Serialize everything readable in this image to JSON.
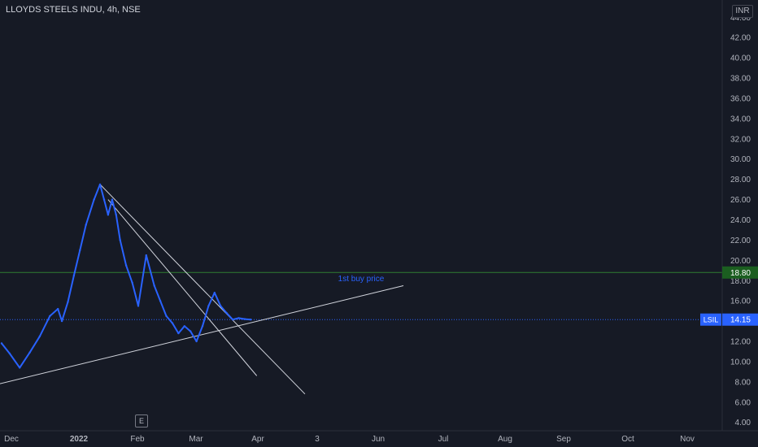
{
  "header": {
    "symbol_title": "LLOYDS STEELS INDU, 4h, NSE",
    "currency_button": "INR"
  },
  "events_marker": "E",
  "price_badges": {
    "symbol": "LSIL",
    "last_price": "14.15",
    "level_price": "18.80"
  },
  "annotation": "1st buy price",
  "colors": {
    "background": "#161a25",
    "price_line": "#2962ff",
    "trend_lines": "#d1d4dc",
    "level_line": "#2e7d32",
    "level_badge": "#1b5e20",
    "last_price_badge": "#2962ff",
    "axis_text": "#b2b5be"
  },
  "chart_data": {
    "type": "line",
    "title": "",
    "xlabel": "",
    "ylabel": "",
    "ylim": [
      4,
      44
    ],
    "x_tick_labels": [
      "Dec",
      "2022",
      "Feb",
      "Mar",
      "Apr",
      "3",
      "Jun",
      "Jul",
      "Aug",
      "Sep",
      "Oct",
      "Nov"
    ],
    "y_tick_labels": [
      "4.00",
      "6.00",
      "8.00",
      "10.00",
      "12.00",
      "14.00",
      "16.00",
      "18.00",
      "20.00",
      "22.00",
      "24.00",
      "26.00",
      "28.00",
      "30.00",
      "32.00",
      "34.00",
      "36.00",
      "38.00",
      "40.00",
      "42.00",
      "44.00"
    ],
    "series": [
      {
        "x": [
          "Nov 24",
          "Nov 28",
          "Dec 3",
          "Dec 8",
          "Dec 13",
          "Dec 18",
          "Dec 22",
          "Dec 24",
          "Dec 27",
          "Dec 30",
          "Jan 2",
          "Jan 5",
          "Jan 9",
          "Jan 12",
          "Jan 14",
          "Jan 16",
          "Jan 18",
          "Jan 20",
          "Jan 22",
          "Jan 25",
          "Jan 28",
          "Jan 31",
          "Feb 4",
          "Feb 8",
          "Feb 11",
          "Feb 14",
          "Feb 17",
          "Feb 20",
          "Feb 23",
          "Feb 26",
          "Mar 1",
          "Mar 4",
          "Mar 7",
          "Mar 10",
          "Mar 13",
          "Mar 16",
          "Mar 19",
          "Mar 22",
          "Mar 25",
          "Mar 28"
        ],
        "values": [
          11.8,
          10.8,
          9.4,
          10.9,
          12.5,
          14.5,
          15.2,
          14.0,
          15.9,
          18.5,
          21.0,
          23.5,
          26.0,
          27.5,
          26.0,
          24.5,
          26.0,
          24.5,
          22.0,
          19.5,
          17.8,
          15.5,
          20.5,
          17.5,
          16.0,
          14.5,
          13.8,
          12.8,
          13.5,
          13.0,
          12.0,
          13.5,
          15.5,
          16.8,
          15.5,
          14.8,
          14.15,
          14.3,
          14.2,
          14.15
        ]
      }
    ],
    "horizontal_levels": [
      18.8,
      14.15
    ],
    "trend_lines": [
      {
        "from": [
          "Jan 12",
          27.5
        ],
        "to": [
          "Apr 24",
          6.8
        ]
      },
      {
        "from": [
          "Jan 16",
          26.0
        ],
        "to": [
          "Mar 31",
          8.6
        ]
      },
      {
        "from": [
          "Oct 29",
          6.6
        ],
        "to": [
          "Jun 12",
          17.5
        ]
      }
    ]
  }
}
